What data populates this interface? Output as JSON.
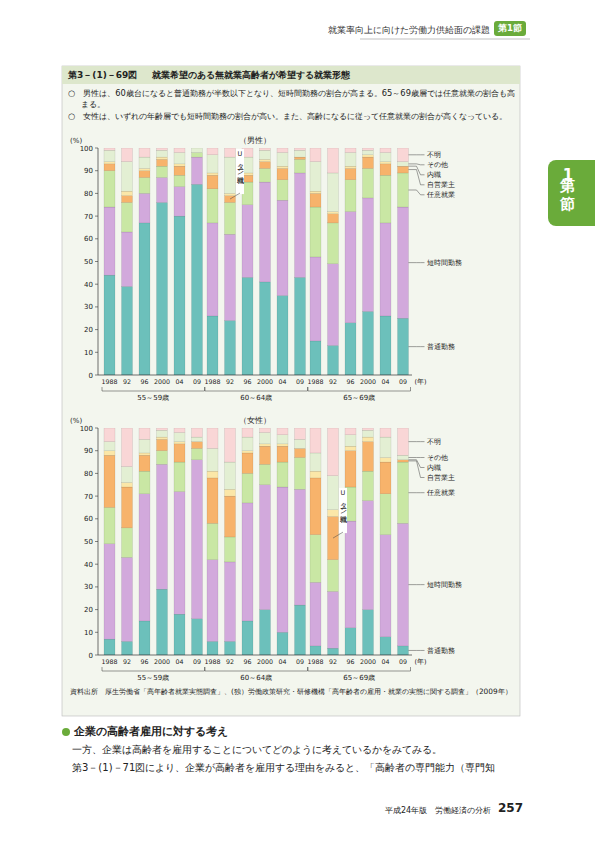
{
  "page": {
    "header": "就業率向上に向けた労働力供給面の課題",
    "badge": "第1節",
    "side_tab": "第1節",
    "figure_number": "第3－(1)－69図",
    "figure_title": "就業希望のある無就業高齢者が希望する就業形態",
    "bullets": [
      "○　男性は、60歳台になると普通勤務が半数以下となり、短時間勤務の割合が高まる。65～69歳層では任意就業の割合も高まる。",
      "○　女性は、いずれの年齢層でも短時間勤務の割合が高い。また、高齢になるに従って任意就業の割合が高くなっている。"
    ],
    "source": "資料出所　厚生労働省「高年齢者就業実態調査」、(独）労働政策研究・研修機構「高年齢者の雇用・就業の実態に関する調査」（2009年）",
    "section_heading": "企業の高齢者雇用に対する考え",
    "paragraphs": [
      "一方、企業は高齢者を雇用することについてどのように考えているかをみてみる。",
      "第3－(1)－71図により、企業が高齢者を雇用する理由をみると、「高齢者の専門能力（専門知"
    ],
    "footer_title": "平成24年版　労働経済の分析",
    "page_number": "257"
  },
  "chart_data": [
    {
      "type": "bar",
      "title": "（男性）",
      "stacked": true,
      "grid": false,
      "legend": "right",
      "y_label": "(%)",
      "x_label": "(年)",
      "categories": [
        "1988",
        "92",
        "96",
        "2000",
        "04",
        "09",
        "1988",
        "92",
        "96",
        "2000",
        "04",
        "09",
        "1988",
        "92",
        "96",
        "2000",
        "04",
        "09"
      ],
      "category_groups": [
        "55～59歳",
        "60～64歳",
        "65～69歳"
      ],
      "ylim": [
        0,
        100
      ],
      "yticks": [
        0,
        10,
        20,
        30,
        40,
        50,
        60,
        70,
        80,
        90,
        100
      ],
      "series": [
        {
          "name": "普通勤務",
          "color": "#6cc0bb",
          "values": [
            44,
            39,
            67,
            76,
            70,
            84,
            26,
            24,
            43,
            41,
            35,
            43,
            15,
            13,
            23,
            28,
            26,
            25
          ]
        },
        {
          "name": "短時間勤務",
          "color": "#d2a9dc",
          "values": [
            30,
            24,
            13,
            11,
            13,
            12,
            41,
            38,
            32,
            44,
            42,
            46,
            37,
            36,
            49,
            50,
            41,
            49
          ]
        },
        {
          "name": "任意就業",
          "color": "#c9e7a4",
          "values": [
            16,
            13,
            7,
            5,
            5,
            2,
            15,
            14,
            10,
            6,
            9,
            6,
            22,
            18,
            14,
            13,
            21,
            15
          ]
        },
        {
          "name": "自営業主",
          "color": "#f7b36b",
          "values": [
            3,
            3,
            3,
            3,
            4,
            0,
            6,
            3,
            3,
            3,
            5,
            1,
            6,
            4,
            5,
            5,
            5,
            3
          ]
        },
        {
          "name": "内職",
          "color": "#fbe7a8",
          "values": [
            1,
            2,
            1,
            1,
            1,
            0,
            1,
            1,
            1,
            1,
            1,
            0,
            1,
            1,
            1,
            1,
            1,
            0
          ]
        },
        {
          "name": "その他",
          "color": "#e3efd3",
          "values": [
            5,
            13,
            5,
            3,
            5,
            2,
            8,
            16,
            7,
            4,
            6,
            3,
            13,
            17,
            6,
            2,
            4,
            2
          ]
        },
        {
          "name": "不明",
          "color": "#f9d6d6",
          "values": [
            1,
            6,
            4,
            1,
            2,
            0,
            3,
            4,
            4,
            1,
            2,
            1,
            6,
            11,
            2,
            1,
            2,
            6
          ]
        }
      ],
      "annotations": [
        {
          "text": "Uターン就職",
          "category_index": 7,
          "series_index": 3
        }
      ]
    },
    {
      "type": "bar",
      "title": "（女性）",
      "stacked": true,
      "grid": false,
      "legend": "right",
      "y_label": "(%)",
      "x_label": "(年)",
      "categories": [
        "1988",
        "92",
        "96",
        "2000",
        "04",
        "09",
        "1988",
        "92",
        "96",
        "2000",
        "04",
        "09",
        "1988",
        "92",
        "96",
        "2000",
        "04",
        "09"
      ],
      "category_groups": [
        "55～59歳",
        "60～64歳",
        "65～69歳"
      ],
      "ylim": [
        0,
        100
      ],
      "yticks": [
        0,
        10,
        20,
        30,
        40,
        50,
        60,
        70,
        80,
        90,
        100
      ],
      "series": [
        {
          "name": "普通勤務",
          "color": "#6cc0bb",
          "values": [
            7,
            6,
            15,
            29,
            18,
            16,
            6,
            6,
            15,
            20,
            10,
            22,
            4,
            3,
            12,
            20,
            8,
            4
          ]
        },
        {
          "name": "短時間勤務",
          "color": "#d2a9dc",
          "values": [
            42,
            37,
            56,
            55,
            54,
            70,
            36,
            35,
            52,
            55,
            64,
            51,
            28,
            25,
            47,
            48,
            45,
            54
          ]
        },
        {
          "name": "任意就業",
          "color": "#c9e7a4",
          "values": [
            16,
            13,
            10,
            6,
            13,
            5,
            16,
            11,
            13,
            9,
            11,
            14,
            21,
            14,
            15,
            13,
            18,
            27
          ]
        },
        {
          "name": "自営業主",
          "color": "#f7b36b",
          "values": [
            23,
            18,
            7,
            5,
            8,
            3,
            20,
            18,
            9,
            8,
            7,
            4,
            25,
            19,
            16,
            13,
            14,
            1
          ]
        },
        {
          "name": "内職",
          "color": "#fbe7a8",
          "values": [
            2,
            2,
            1,
            1,
            1,
            0,
            3,
            3,
            1,
            1,
            1,
            0,
            3,
            3,
            2,
            2,
            2,
            0
          ]
        },
        {
          "name": "その他",
          "color": "#e3efd3",
          "values": [
            4,
            7,
            6,
            3,
            4,
            2,
            10,
            12,
            6,
            5,
            4,
            4,
            8,
            15,
            5,
            3,
            9,
            2
          ]
        },
        {
          "name": "不明",
          "color": "#f9d6d6",
          "values": [
            6,
            17,
            5,
            1,
            2,
            4,
            9,
            15,
            4,
            2,
            3,
            5,
            11,
            21,
            3,
            1,
            4,
            12
          ]
        }
      ],
      "annotations": [
        {
          "text": "Uターン就職",
          "category_index": 13,
          "series_index": 3
        }
      ]
    }
  ]
}
